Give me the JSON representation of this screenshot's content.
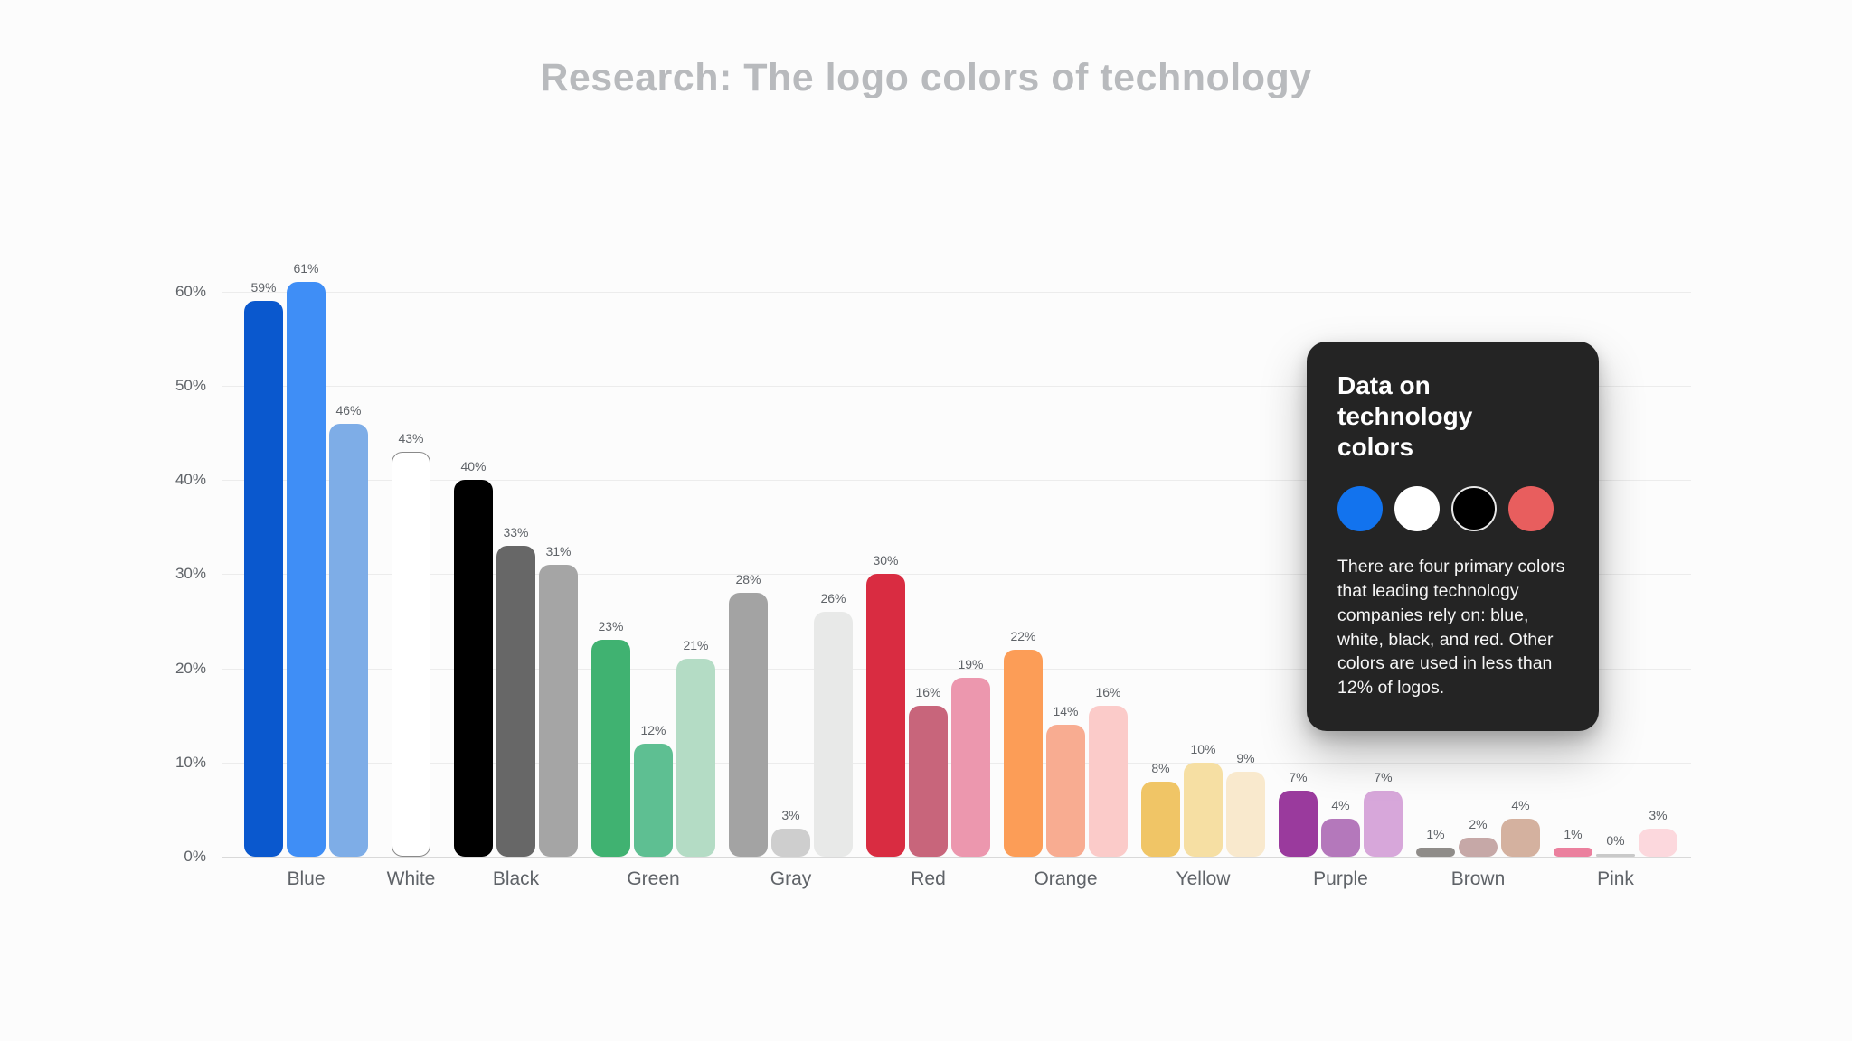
{
  "title": "Research: The logo colors of technology",
  "tooltip": {
    "title": "Data on technology colors",
    "body": "There are four primary colors that leading technology companies rely on: blue, white, black, and red. Other colors are used in less than 12% of logos.",
    "swatches": [
      {
        "name": "blue-swatch",
        "color": "#1273ee",
        "ring": false
      },
      {
        "name": "white-swatch",
        "color": "#ffffff",
        "ring": false
      },
      {
        "name": "black-swatch",
        "color": "#000000",
        "ring": true
      },
      {
        "name": "red-swatch",
        "color": "#e85e5e",
        "ring": false
      }
    ]
  },
  "chart_data": {
    "type": "bar",
    "title": "Research: The logo colors of technology",
    "xlabel": "",
    "ylabel": "",
    "ylim": [
      0,
      65
    ],
    "yticks": [
      0,
      10,
      20,
      30,
      40,
      50,
      60
    ],
    "ytick_suffix": "%",
    "grid": true,
    "legend_position": "none",
    "groups": [
      {
        "label": "Blue",
        "bars": [
          {
            "value": 59,
            "color": "#0a58ce"
          },
          {
            "value": 61,
            "color": "#3f8ef6"
          },
          {
            "value": 46,
            "color": "#7eade7"
          }
        ]
      },
      {
        "label": "White",
        "bars": [
          {
            "value": 43,
            "color": "#ffffff",
            "border": "#8a8a8a"
          }
        ]
      },
      {
        "label": "Black",
        "bars": [
          {
            "value": 40,
            "color": "#000000"
          },
          {
            "value": 33,
            "color": "#676767"
          },
          {
            "value": 31,
            "color": "#a5a5a5"
          }
        ]
      },
      {
        "label": "Green",
        "bars": [
          {
            "value": 23,
            "color": "#40b271"
          },
          {
            "value": 12,
            "color": "#5ebf92",
            "dotted": true
          },
          {
            "value": 21,
            "color": "#b4dcc5"
          }
        ]
      },
      {
        "label": "Gray",
        "bars": [
          {
            "value": 28,
            "color": "#a3a3a3"
          },
          {
            "value": 3,
            "color": "#cecece"
          },
          {
            "value": 26,
            "color": "#e8e9e8",
            "dotted": true
          }
        ]
      },
      {
        "label": "Red",
        "bars": [
          {
            "value": 30,
            "color": "#d92c41"
          },
          {
            "value": 16,
            "color": "#c8657b"
          },
          {
            "value": 19,
            "color": "#ec97ae"
          }
        ]
      },
      {
        "label": "Orange",
        "bars": [
          {
            "value": 22,
            "color": "#fc9d57"
          },
          {
            "value": 14,
            "color": "#f8ac91"
          },
          {
            "value": 16,
            "color": "#fbcbc9"
          }
        ]
      },
      {
        "label": "Yellow",
        "bars": [
          {
            "value": 8,
            "color": "#f0c566"
          },
          {
            "value": 10,
            "color": "#f6dfa3"
          },
          {
            "value": 9,
            "color": "#f9e9cd"
          }
        ]
      },
      {
        "label": "Purple",
        "bars": [
          {
            "value": 7,
            "color": "#9a3a9d"
          },
          {
            "value": 4,
            "color": "#b478bb"
          },
          {
            "value": 7,
            "color": "#d7a7da",
            "dotted": true
          }
        ]
      },
      {
        "label": "Brown",
        "bars": [
          {
            "value": 1,
            "color": "#8f8c89",
            "dotted": true
          },
          {
            "value": 2,
            "color": "#c6a8a7",
            "dotted": true
          },
          {
            "value": 4,
            "color": "#d4b19f"
          }
        ]
      },
      {
        "label": "Pink",
        "bars": [
          {
            "value": 1,
            "color": "#eb809e",
            "dotted": true
          },
          {
            "value": 0,
            "color": "#c9c9c9"
          },
          {
            "value": 3,
            "color": "#fcd8dd"
          }
        ]
      }
    ]
  }
}
